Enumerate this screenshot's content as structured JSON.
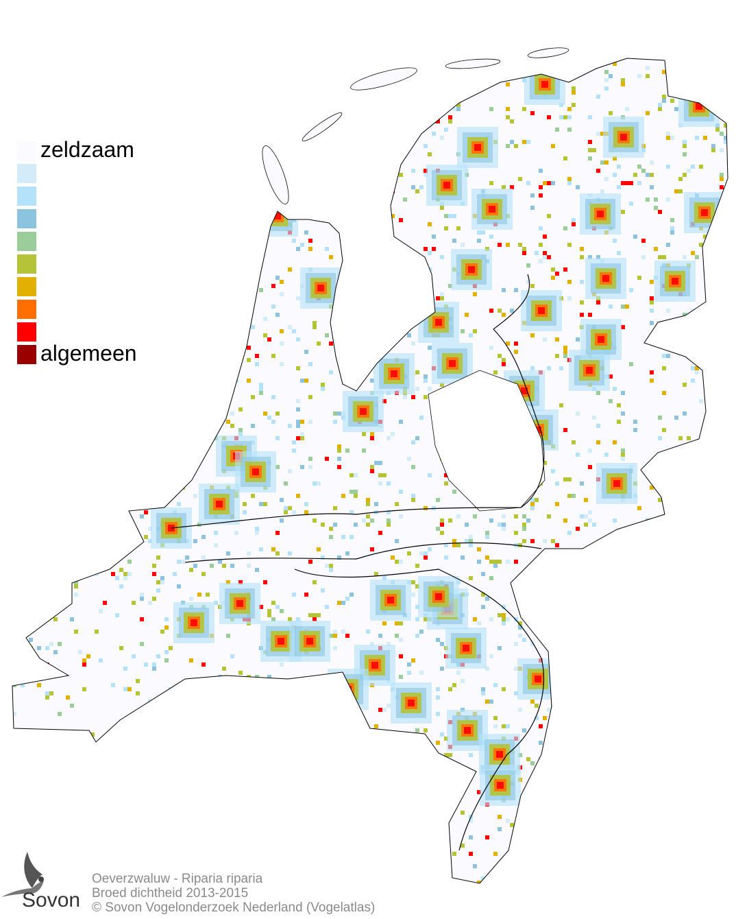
{
  "legend": {
    "top_label": "zeldzaam",
    "bottom_label": "algemeen",
    "colors": [
      "#fafaff",
      "#d4ebfa",
      "#b4e2fa",
      "#8cc4e0",
      "#9bcd9b",
      "#b4c337",
      "#e1b000",
      "#ff6e00",
      "#ff0000",
      "#9b0000"
    ]
  },
  "footer": {
    "line1": "Oeverzwaluw - Riparia riparia",
    "line2": "Broed dichtheid 2013-2015",
    "line3": "© Sovon Vogelonderzoek Nederland (Vogelatlas)"
  },
  "logo": {
    "text": "Sovon"
  }
}
